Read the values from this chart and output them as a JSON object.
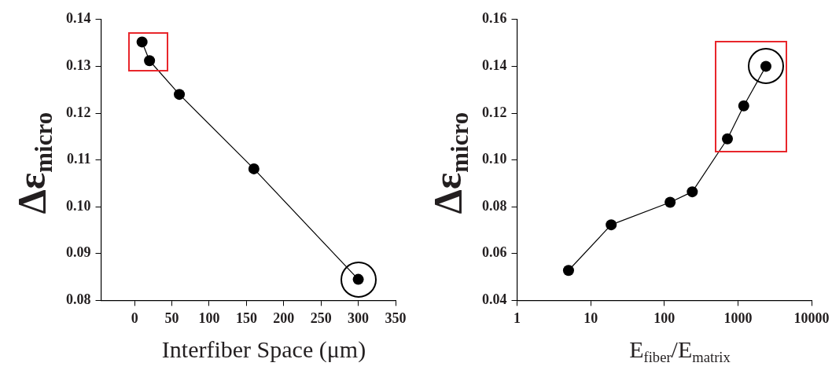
{
  "chart_data": [
    {
      "type": "line",
      "xlabel": "Interfiber Space (μm)",
      "ylabel": "Δε$_{micro}$",
      "x": [
        10,
        20,
        60,
        160,
        300
      ],
      "series": [
        {
          "color": "#000000",
          "values": [
            0.1352,
            0.1312,
            0.124,
            0.1081,
            0.0845
          ]
        }
      ],
      "xlim": [
        -45,
        350
      ],
      "xticks": [
        0,
        50,
        100,
        150,
        200,
        250,
        300,
        350
      ],
      "ylim": [
        0.08,
        0.14
      ],
      "yticks": [
        {
          "value": 0.08,
          "label": "0.08"
        },
        {
          "value": 0.09,
          "label": "0.09"
        },
        {
          "value": 0.1,
          "label": "0.10"
        },
        {
          "value": 0.11,
          "label": "0.11"
        },
        {
          "value": 0.12,
          "label": "0.12"
        },
        {
          "value": 0.13,
          "label": "0.13"
        },
        {
          "value": 0.14,
          "label": "0.14"
        }
      ],
      "marker": "circle",
      "line_style": "solid",
      "grid": false
    },
    {
      "type": "line",
      "xlabel": "E$_{fiber}$/E$_{matrix}$",
      "ylabel": "Δε$_{micro}$",
      "x": [
        5,
        19,
        120,
        240,
        720,
        1200,
        2400
      ],
      "series": [
        {
          "color": "#000000",
          "values": [
            0.0528,
            0.0723,
            0.0819,
            0.0864,
            0.109,
            0.1231,
            0.14
          ]
        }
      ],
      "xlim": [
        1,
        10000
      ],
      "xticks": [
        1,
        10,
        100,
        1000,
        10000
      ],
      "ylim": [
        0.04,
        0.16
      ],
      "yticks": [
        {
          "value": 0.04,
          "label": "0.04"
        },
        {
          "value": 0.06,
          "label": "0.06"
        },
        {
          "value": 0.08,
          "label": "0.08"
        },
        {
          "value": 0.1,
          "label": "0.10"
        },
        {
          "value": 0.12,
          "label": "0.12"
        },
        {
          "value": 0.14,
          "label": "0.14"
        },
        {
          "value": 0.16,
          "label": "0.16"
        }
      ],
      "log": "x",
      "marker": "circle",
      "line_style": "solid",
      "grid": false
    }
  ]
}
